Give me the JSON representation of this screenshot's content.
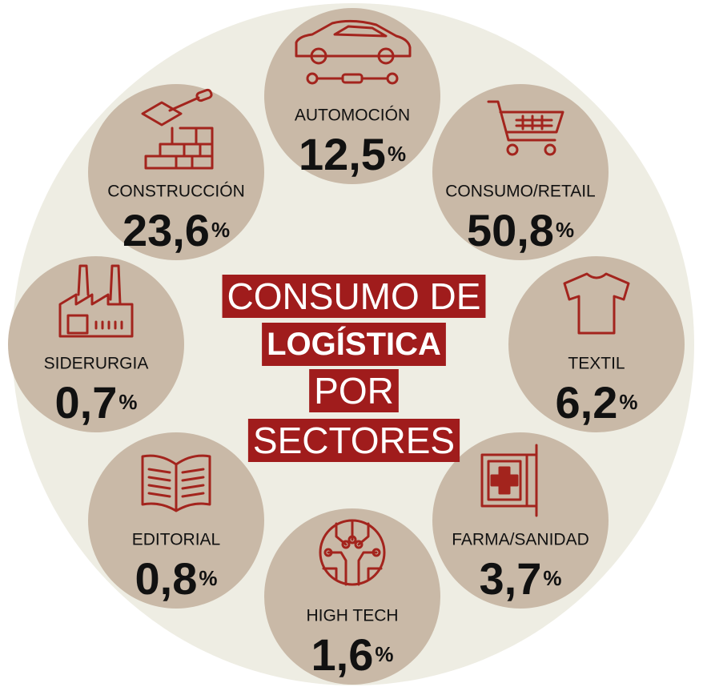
{
  "title": [
    "CONSUMO DE",
    "LOGÍSTICA",
    "POR",
    "SECTORES"
  ],
  "unit": "%",
  "sectors": [
    {
      "label": "AUTOMOCIÓN",
      "value": "12,5"
    },
    {
      "label": "CONSUMO/RETAIL",
      "value": "50,8"
    },
    {
      "label": "TEXTIL",
      "value": "6,2"
    },
    {
      "label": "FARMA/SANIDAD",
      "value": "3,7"
    },
    {
      "label": "HIGH TECH",
      "value": "1,6"
    },
    {
      "label": "EDITORIAL",
      "value": "0,8"
    },
    {
      "label": "SIDERURGIA",
      "value": "0,7"
    },
    {
      "label": "CONSTRUCCIÓN",
      "value": "23,6"
    }
  ]
}
